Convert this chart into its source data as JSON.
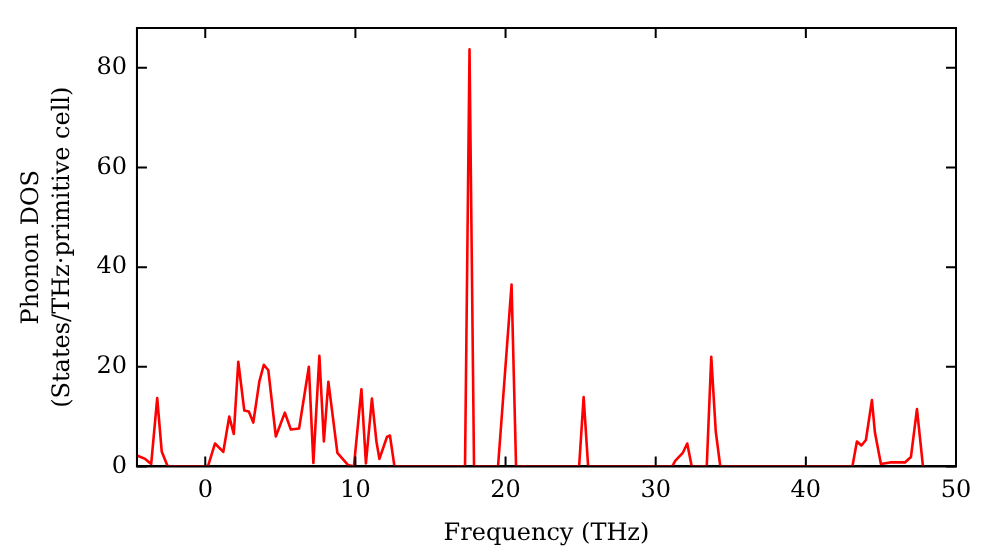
{
  "chart_data": {
    "type": "line",
    "xlabel": "Frequency (THz)",
    "ylabel": "Phonon DOS\n(States/THz·primitive cell)",
    "xlim": [
      -4.55,
      50
    ],
    "ylim": [
      0,
      88
    ],
    "xticks": [
      0,
      10,
      20,
      30,
      40,
      50
    ],
    "yticks": [
      0,
      20,
      40,
      60,
      80
    ],
    "grid": false,
    "legend": false,
    "marker": "none",
    "line_style": "solid",
    "series": [
      {
        "color": "#ff0000",
        "x": [
          -4.55,
          -4,
          -3.6,
          -3.2,
          -2.9,
          -2.5,
          0,
          0.2,
          0.65,
          1.2,
          1.6,
          1.9,
          2.2,
          2.6,
          2.9,
          3.2,
          3.6,
          3.9,
          4.2,
          4.7,
          5.3,
          5.7,
          6.25,
          6.9,
          7.2,
          7.6,
          7.9,
          8.2,
          8.8,
          9.5,
          9.9,
          10.4,
          10.7,
          11.1,
          11.4,
          11.6,
          12.1,
          12.3,
          12.6,
          17.3,
          17.6,
          17.9,
          19.5,
          20.4,
          20.7,
          24.9,
          25.2,
          25.5,
          31.1,
          31.3,
          31.8,
          32.1,
          32.4,
          33.4,
          33.7,
          34.0,
          34.3,
          43.1,
          43.4,
          43.7,
          44.0,
          44.4,
          44.6,
          45.0,
          45.6,
          46.6,
          47.0,
          47.4,
          47.8
        ],
        "values": [
          2.2,
          1.5,
          0.5,
          13.7,
          3,
          0,
          0,
          0.2,
          4.6,
          2.9,
          10,
          6.5,
          21,
          11.2,
          11,
          8.8,
          17,
          20.4,
          19.3,
          6,
          10.8,
          7.4,
          7.6,
          20,
          0.7,
          22.2,
          5,
          17,
          2.7,
          0.3,
          0,
          15.5,
          0.6,
          13.6,
          5,
          1.5,
          5.9,
          6.2,
          0,
          0,
          83.7,
          0,
          0,
          36.5,
          0,
          0,
          13.9,
          0,
          0,
          1.1,
          2.7,
          4.6,
          0,
          0,
          22,
          7,
          0,
          0,
          5,
          4.2,
          5.3,
          13.3,
          6.8,
          0.5,
          0.8,
          0.8,
          1.9,
          11.5,
          0
        ]
      }
    ]
  }
}
